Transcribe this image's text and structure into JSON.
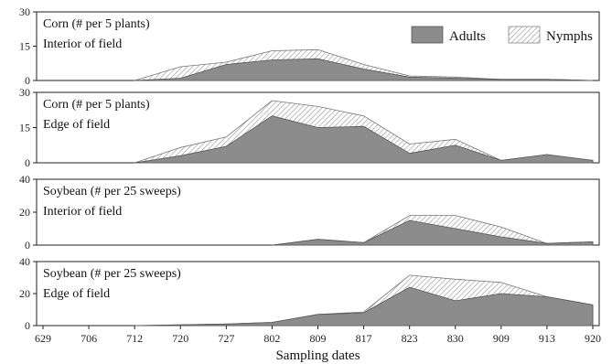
{
  "chart_data": {
    "type": "area",
    "stacked": true,
    "categories": [
      "629",
      "706",
      "712",
      "720",
      "727",
      "802",
      "809",
      "817",
      "823",
      "830",
      "909",
      "913",
      "920"
    ],
    "xlabel": "Sampling dates",
    "legend": {
      "placement": "top-right",
      "entries": [
        {
          "name": "Adults",
          "color": "#8c8c8c",
          "pattern": "solid"
        },
        {
          "name": "Nymphs",
          "color": "#ffffff",
          "pattern": "hatched"
        }
      ]
    },
    "panels": [
      {
        "annotation": [
          "Corn (# per 5 plants)",
          "Interior of field"
        ],
        "ylim": [
          0,
          30
        ],
        "yticks": [
          "0",
          "15",
          "30"
        ],
        "start_index": 2,
        "series": [
          {
            "name": "Adults",
            "values": [
              null,
              null,
              0,
              1,
              7,
              9,
              9.5,
              5,
              1.5,
              1,
              0.5,
              0.5,
              0
            ]
          },
          {
            "name": "Nymphs",
            "values": [
              null,
              null,
              0,
              5,
              1,
              4,
              4,
              2,
              0.5,
              0.5,
              0,
              0,
              0
            ]
          }
        ]
      },
      {
        "annotation": [
          "Corn (# per 5 plants)",
          "Edge of field"
        ],
        "ylim": [
          0,
          30
        ],
        "yticks": [
          "0",
          "15",
          "30"
        ],
        "start_index": 2,
        "series": [
          {
            "name": "Adults",
            "values": [
              null,
              null,
              0,
              3,
              7,
              20,
              15,
              15.5,
              4,
              7.5,
              1,
              3.5,
              1
            ]
          },
          {
            "name": "Nymphs",
            "values": [
              null,
              null,
              0,
              3.5,
              4,
              6.5,
              9,
              4.5,
              4,
              2.5,
              0,
              0,
              0
            ]
          }
        ]
      },
      {
        "annotation": [
          "Soybean (# per 25 sweeps)",
          "Interior of field"
        ],
        "ylim": [
          0,
          40
        ],
        "yticks": [
          "0",
          "20",
          "40"
        ],
        "start_index": 5,
        "series": [
          {
            "name": "Adults",
            "values": [
              null,
              null,
              null,
              null,
              null,
              0,
              3.5,
              1.5,
              15,
              10,
              5,
              1,
              2
            ]
          },
          {
            "name": "Nymphs",
            "values": [
              null,
              null,
              null,
              null,
              null,
              0,
              0,
              0,
              3,
              8,
              6,
              0,
              0
            ]
          }
        ]
      },
      {
        "annotation": [
          "Soybean (# per 25 sweeps)",
          "Edge of field"
        ],
        "ylim": [
          0,
          40
        ],
        "yticks": [
          "0",
          "20",
          "40"
        ],
        "start_index": 2,
        "series": [
          {
            "name": "Adults",
            "values": [
              null,
              null,
              0,
              0.5,
              1,
              2,
              7,
              8,
              24,
              15.5,
              20,
              18,
              13
            ]
          },
          {
            "name": "Nymphs",
            "values": [
              null,
              null,
              0,
              0,
              0,
              0,
              0,
              0.5,
              7.5,
              13.5,
              7,
              0,
              0
            ]
          }
        ]
      }
    ]
  }
}
